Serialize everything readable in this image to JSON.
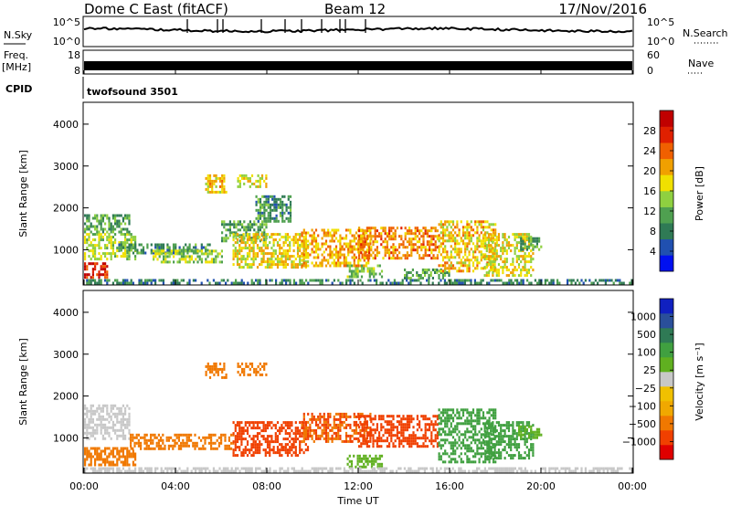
{
  "header": {
    "radar": "Dome C East (fitACF)",
    "beam": "Beam 12",
    "date": "17/Nov/2016"
  },
  "param_panels": {
    "nsky_label": "N.Sky",
    "nsky_ticks": [
      "10^5",
      "10^0"
    ],
    "nsearch_label": "N.Search",
    "nsearch_ticks": [
      "10^5",
      "10^0"
    ],
    "freq_label": "Freq.",
    "freq_unit": "[MHz]",
    "freq_ticks": [
      "18",
      "8"
    ],
    "nave_label": "Nave",
    "nave_ticks": [
      "60",
      "0"
    ],
    "cpid_label": "CPID",
    "cpid_value": "twofsound 3501"
  },
  "colors": {
    "power": [
      "#0010f0",
      "#2050b0",
      "#2f7a55",
      "#4fa050",
      "#8fd040",
      "#f0e000",
      "#f0a000",
      "#f06000",
      "#e02000",
      "#c00000"
    ],
    "velocity": [
      "#e00000",
      "#f04000",
      "#f07800",
      "#f0a800",
      "#f0c000",
      "#c8c8c8",
      "#60b020",
      "#40a040",
      "#2f7a55",
      "#2a4f9a",
      "#1020c0"
    ]
  },
  "chart_data": [
    {
      "type": "heatmap",
      "name": "power-panel",
      "ylabel": "Slant Range [km]",
      "ylim": [
        180,
        4500
      ],
      "xlim": [
        "00:00",
        "24:00"
      ],
      "yticks": [
        "1000",
        "2000",
        "3000",
        "4000"
      ],
      "colorbar_label": "Power [dB]",
      "colorbar_ticks": [
        "4",
        "8",
        "12",
        "16",
        "20",
        "24",
        "28"
      ],
      "colorbar_range": [
        0,
        30
      ],
      "regions": [
        {
          "t": [
            0.0,
            1.0
          ],
          "r": [
            350,
            700
          ],
          "value": 26
        },
        {
          "t": [
            0.0,
            2.2
          ],
          "r": [
            750,
            1400
          ],
          "value": 14
        },
        {
          "t": [
            0.0,
            2.0
          ],
          "r": [
            1400,
            1850
          ],
          "value": 10
        },
        {
          "t": [
            1.5,
            5.5
          ],
          "r": [
            950,
            1150
          ],
          "value": 9
        },
        {
          "t": [
            3.0,
            6.0
          ],
          "r": [
            700,
            1000
          ],
          "value": 14
        },
        {
          "t": [
            5.3,
            6.2
          ],
          "r": [
            2400,
            2800
          ],
          "value": 18
        },
        {
          "t": [
            6.7,
            8.0
          ],
          "r": [
            2500,
            2800
          ],
          "value": 16
        },
        {
          "t": [
            6.0,
            8.0
          ],
          "r": [
            1200,
            1700
          ],
          "value": 10
        },
        {
          "t": [
            6.5,
            9.8
          ],
          "r": [
            600,
            1400
          ],
          "value": 17
        },
        {
          "t": [
            7.5,
            9.0
          ],
          "r": [
            1700,
            2300
          ],
          "value": 9
        },
        {
          "t": [
            9.5,
            12.5
          ],
          "r": [
            600,
            1500
          ],
          "value": 19
        },
        {
          "t": [
            11.5,
            13.0
          ],
          "r": [
            350,
            650
          ],
          "value": 13
        },
        {
          "t": [
            12.0,
            15.5
          ],
          "r": [
            800,
            1550
          ],
          "value": 21
        },
        {
          "t": [
            14.0,
            16.0
          ],
          "r": [
            350,
            550
          ],
          "value": 10
        },
        {
          "t": [
            15.5,
            18.0
          ],
          "r": [
            500,
            1700
          ],
          "value": 18
        },
        {
          "t": [
            17.5,
            19.7
          ],
          "r": [
            400,
            1400
          ],
          "value": 16
        },
        {
          "t": [
            19.0,
            20.0
          ],
          "r": [
            1000,
            1300
          ],
          "value": 10
        },
        {
          "t": [
            0.0,
            24.0
          ],
          "r": [
            200,
            300
          ],
          "value": 8
        }
      ]
    },
    {
      "type": "heatmap",
      "name": "velocity-panel",
      "ylabel": "Slant Range [km]",
      "xlabel": "Time UT",
      "ylim": [
        180,
        4500
      ],
      "xlim": [
        "00:00",
        "24:00"
      ],
      "yticks": [
        "1000",
        "2000",
        "3000",
        "4000"
      ],
      "xticks": [
        "00:00",
        "04:00",
        "08:00",
        "12:00",
        "16:00",
        "20:00",
        "00:00"
      ],
      "colorbar_label": "Velocity [m s⁻¹]",
      "colorbar_ticks": [
        "1000",
        "500",
        "100",
        "25",
        "−25",
        "−100",
        "−500",
        "−1000"
      ],
      "regions": [
        {
          "t": [
            0.0,
            2.2
          ],
          "r": [
            380,
            780
          ],
          "value": -150
        },
        {
          "t": [
            0.0,
            2.0
          ],
          "r": [
            1000,
            1800
          ],
          "value": 10
        },
        {
          "t": [
            2.0,
            6.5
          ],
          "r": [
            750,
            1100
          ],
          "value": -120
        },
        {
          "t": [
            5.3,
            6.2
          ],
          "r": [
            2450,
            2800
          ],
          "value": -200
        },
        {
          "t": [
            6.7,
            8.0
          ],
          "r": [
            2500,
            2800
          ],
          "value": -120
        },
        {
          "t": [
            6.5,
            9.8
          ],
          "r": [
            600,
            1400
          ],
          "value": -300
        },
        {
          "t": [
            9.5,
            12.5
          ],
          "r": [
            900,
            1600
          ],
          "value": -250
        },
        {
          "t": [
            12.0,
            15.5
          ],
          "r": [
            800,
            1550
          ],
          "value": -280
        },
        {
          "t": [
            11.5,
            13.0
          ],
          "r": [
            300,
            600
          ],
          "value": 50
        },
        {
          "t": [
            15.5,
            18.0
          ],
          "r": [
            400,
            1700
          ],
          "value": 200
        },
        {
          "t": [
            17.5,
            19.7
          ],
          "r": [
            500,
            1400
          ],
          "value": 150
        },
        {
          "t": [
            19.0,
            20.0
          ],
          "r": [
            1000,
            1300
          ],
          "value": 80
        },
        {
          "t": [
            0.0,
            24.0
          ],
          "r": [
            200,
            300
          ],
          "value": 10
        }
      ]
    }
  ]
}
